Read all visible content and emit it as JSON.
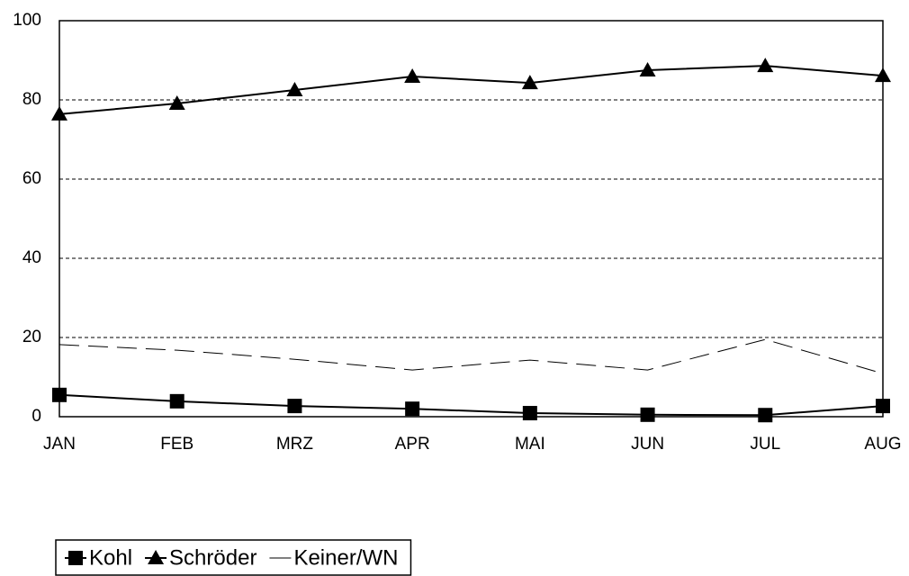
{
  "chart_data": {
    "type": "line",
    "categories": [
      "JAN",
      "FEB",
      "MRZ",
      "APR",
      "MAI",
      "JUN",
      "JUL",
      "AUG"
    ],
    "series": [
      {
        "name": "Kohl",
        "color": "#000000",
        "marker": "square",
        "line_style": "solid",
        "values": [
          5.5,
          3.9,
          2.7,
          2.0,
          0.9,
          0.5,
          0.4,
          2.7
        ]
      },
      {
        "name": "Schröder",
        "color": "#000000",
        "marker": "triangle",
        "line_style": "solid",
        "values": [
          76.4,
          79.1,
          82.5,
          85.9,
          84.3,
          87.5,
          88.6,
          86.1
        ]
      },
      {
        "name": "Keiner/WN",
        "color": "#000000",
        "marker": "none",
        "line_style": "dash",
        "values": [
          18.2,
          16.8,
          14.5,
          11.8,
          14.3,
          11.8,
          19.5,
          10.9
        ]
      }
    ],
    "ylim": [
      0,
      100
    ],
    "yticks": [
      0,
      20,
      40,
      60,
      80,
      100
    ],
    "grid": true,
    "legend": "bottom-left"
  }
}
